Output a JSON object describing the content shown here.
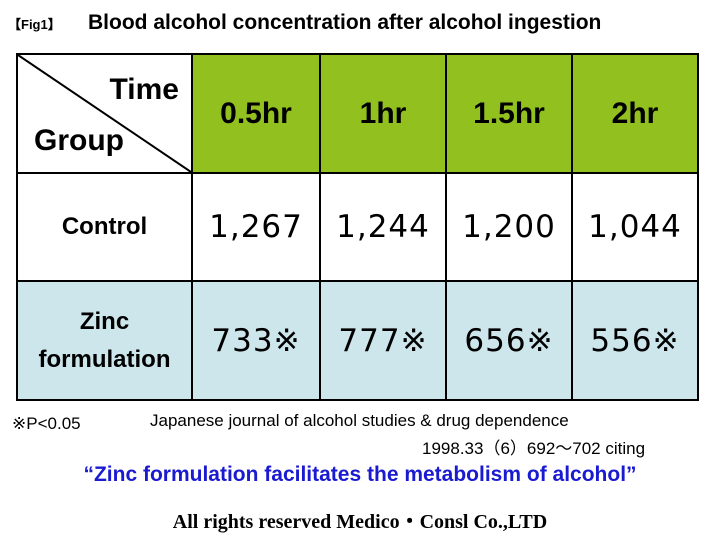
{
  "figure": {
    "label": "【Fig1】",
    "title": "Blood alcohol concentration after alcohol ingestion"
  },
  "chart_data": {
    "type": "table",
    "title": "Blood alcohol concentration after alcohol ingestion",
    "corner": {
      "column_header": "Time",
      "row_header": "Group"
    },
    "columns": [
      "0.5hr",
      "1hr",
      "1.5hr",
      "2hr"
    ],
    "rows": [
      {
        "group_lines": [
          "Control"
        ],
        "values": [
          1267,
          1244,
          1200,
          1044
        ],
        "display": [
          "1,267",
          "1,244",
          "1,200",
          "1,044"
        ]
      },
      {
        "group_lines": [
          "Zinc",
          "formulation"
        ],
        "values": [
          733,
          777,
          656,
          556
        ],
        "display": [
          "733※",
          "777※",
          "656※",
          "556※"
        ]
      }
    ],
    "header_color": "#92c01e",
    "zinc_row_color": "#cce6ec"
  },
  "notes": {
    "significance": "※P<0.05",
    "source_line1": "Japanese journal of alcohol studies & drug dependence",
    "source_line2": "1998.33（6）692～702 citing",
    "quote": "“Zinc formulation facilitates the metabolism of alcohol”",
    "quote_color": "#1a1ad0",
    "rights": "All rights reserved  Medico・Consl Co.,LTD"
  }
}
